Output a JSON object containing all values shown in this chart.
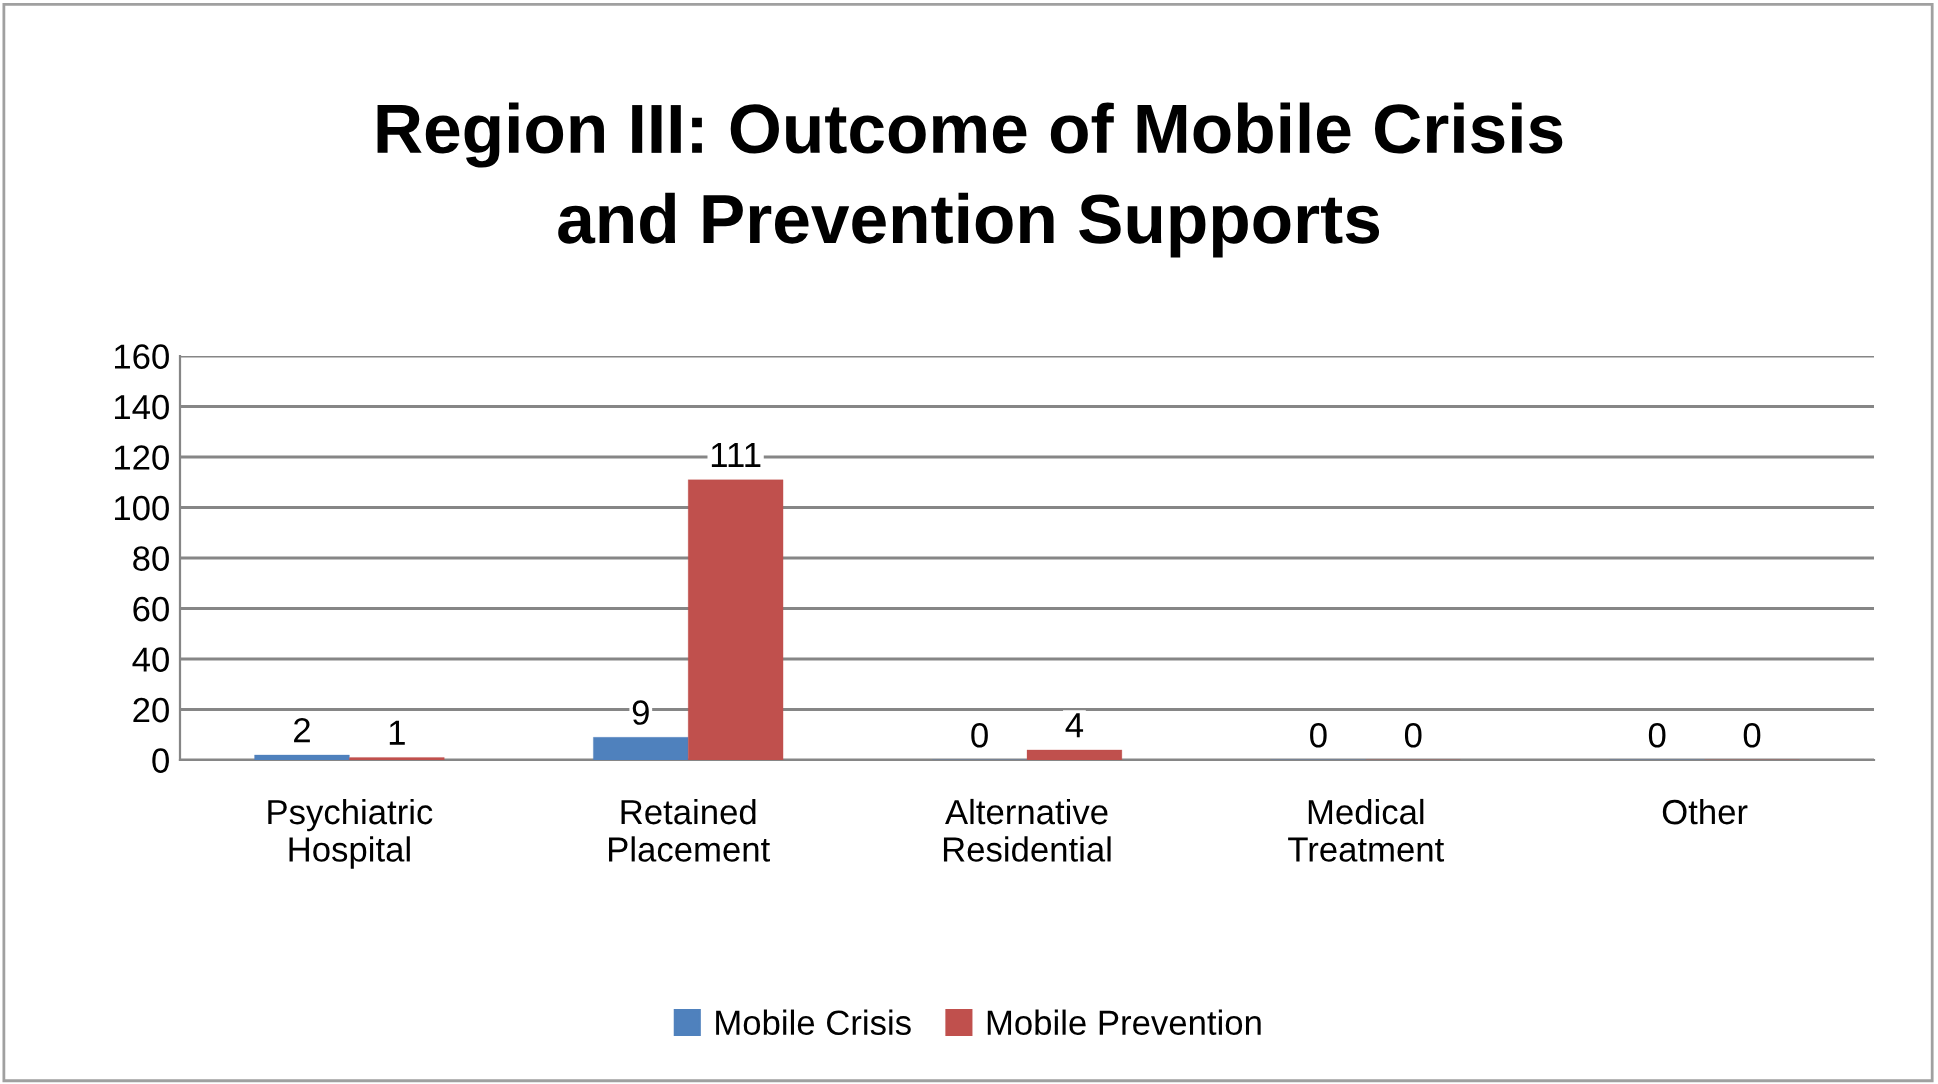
{
  "chart_data": {
    "type": "bar",
    "title": "Region III: Outcome of Mobile Crisis and Prevention Supports",
    "categories": [
      "Psychiatric Hospital",
      "Retained Placement",
      "Alternative Residential",
      "Medical Treatment",
      "Other"
    ],
    "series": [
      {
        "name": "Mobile Crisis",
        "color": "#4f81bd",
        "values": [
          2,
          9,
          0,
          0,
          0
        ]
      },
      {
        "name": "Mobile Prevention",
        "color": "#c0504d",
        "values": [
          1,
          111,
          4,
          0,
          0
        ]
      }
    ],
    "ylim": [
      0,
      160
    ],
    "yticks": [
      0,
      20,
      40,
      60,
      80,
      100,
      120,
      140,
      160
    ],
    "grid": "y",
    "legend": "bottom",
    "data_labels": true
  }
}
